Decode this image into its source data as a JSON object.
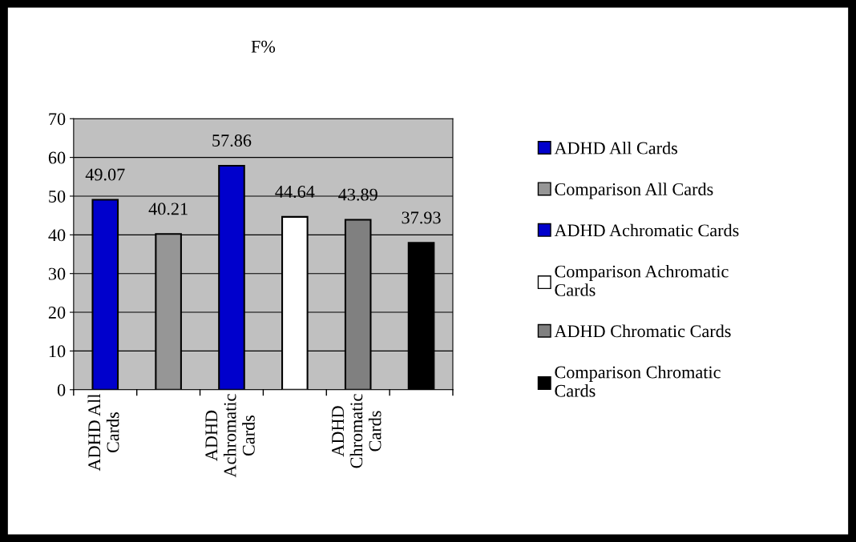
{
  "chart_data": {
    "type": "bar",
    "title": "F%",
    "categories": [
      "ADHD All Cards",
      null,
      "ADHD Achromatic Cards",
      null,
      "ADHD Chromatic Cards",
      null
    ],
    "series": [
      {
        "name": "ADHD All Cards",
        "color": "#0000cc",
        "values": [
          49.07,
          null,
          null,
          null,
          null,
          null
        ]
      },
      {
        "name": "Comparison All Cards",
        "color": "#969696",
        "values": [
          null,
          40.21,
          null,
          null,
          null,
          null
        ]
      },
      {
        "name": "ADHD Achromatic Cards",
        "color": "#0000cc",
        "values": [
          null,
          null,
          57.86,
          null,
          null,
          null
        ]
      },
      {
        "name": "Comparison Achromatic Cards",
        "color": "#ffffff",
        "values": [
          null,
          null,
          null,
          44.64,
          null,
          null
        ]
      },
      {
        "name": "ADHD Chromatic Cards",
        "color": "#808080",
        "values": [
          null,
          null,
          null,
          null,
          43.89,
          null
        ]
      },
      {
        "name": "Comparison Chromatic Cards",
        "color": "#000000",
        "values": [
          null,
          null,
          null,
          null,
          null,
          37.93
        ]
      }
    ],
    "ylim": [
      0,
      70
    ],
    "yticks": [
      0,
      10,
      20,
      30,
      40,
      50,
      60,
      70
    ],
    "grid": "y",
    "legend": "right",
    "data_labels": true
  }
}
